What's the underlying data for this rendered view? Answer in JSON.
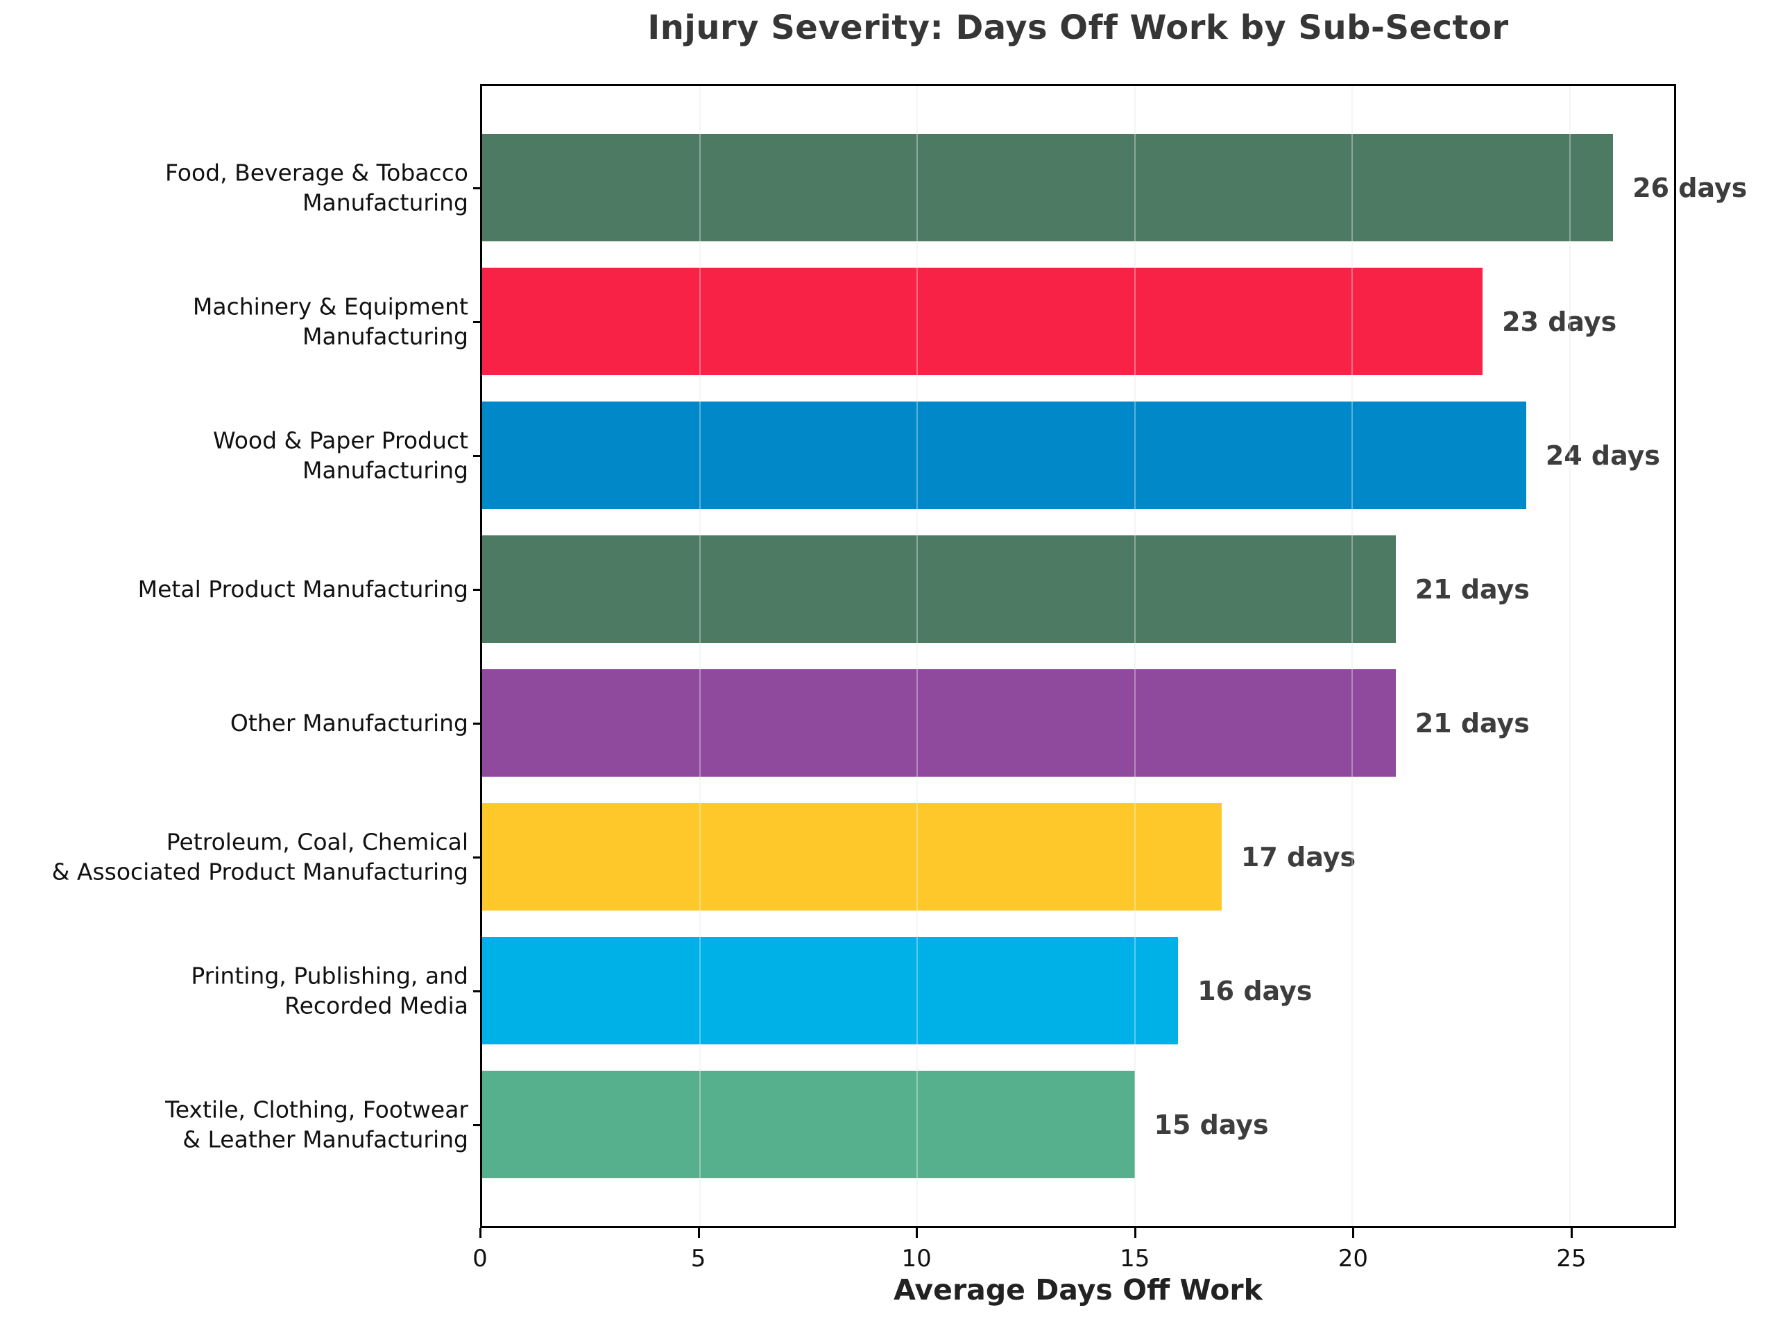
{
  "page": {
    "background": "#ffffff"
  },
  "chart_data": {
    "type": "bar",
    "orientation": "horizontal",
    "title": "Injury Severity: Days Off Work by Sub-Sector",
    "xlabel": "Average Days Off Work",
    "ylabel": "",
    "categories": [
      "Food, Beverage & Tobacco Manufacturing",
      "Machinery & Equipment Manufacturing",
      "Wood & Paper Product Manufacturing",
      "Metal Product Manufacturing",
      "Other Manufacturing",
      "Petroleum, Coal, Chemical & Associated Product Manufacturing",
      "Printing, Publishing, and Recorded Media",
      "Textile, Clothing, Footwear & Leather Manufacturing"
    ],
    "display_labels": [
      "Food, Beverage & Tobacco\nManufacturing",
      "Machinery & Equipment\nManufacturing",
      "Wood & Paper Product\nManufacturing",
      "Metal Product Manufacturing",
      "Other Manufacturing",
      "Petroleum, Coal, Chemical\n& Associated Product Manufacturing",
      "Printing, Publishing, and\nRecorded Media",
      "Textile, Clothing, Footwear\n& Leather Manufacturing"
    ],
    "values": [
      26,
      23,
      24,
      21,
      21,
      17,
      16,
      15
    ],
    "value_labels": [
      "26 days",
      "23 days",
      "24 days",
      "21 days",
      "21 days",
      "17 days",
      "16 days",
      "15 days"
    ],
    "bar_colors": [
      "#4D7A63",
      "#F82246",
      "#0088C8",
      "#4D7A63",
      "#8F4A9D",
      "#FEC82B",
      "#00B1E8",
      "#57B08D"
    ],
    "xlim": [
      0,
      27.4
    ],
    "xticks": [
      0,
      5,
      10,
      15,
      20,
      25
    ],
    "grid": {
      "axis": "x",
      "style": "light vertical lines at ticks"
    },
    "legend": "none"
  }
}
